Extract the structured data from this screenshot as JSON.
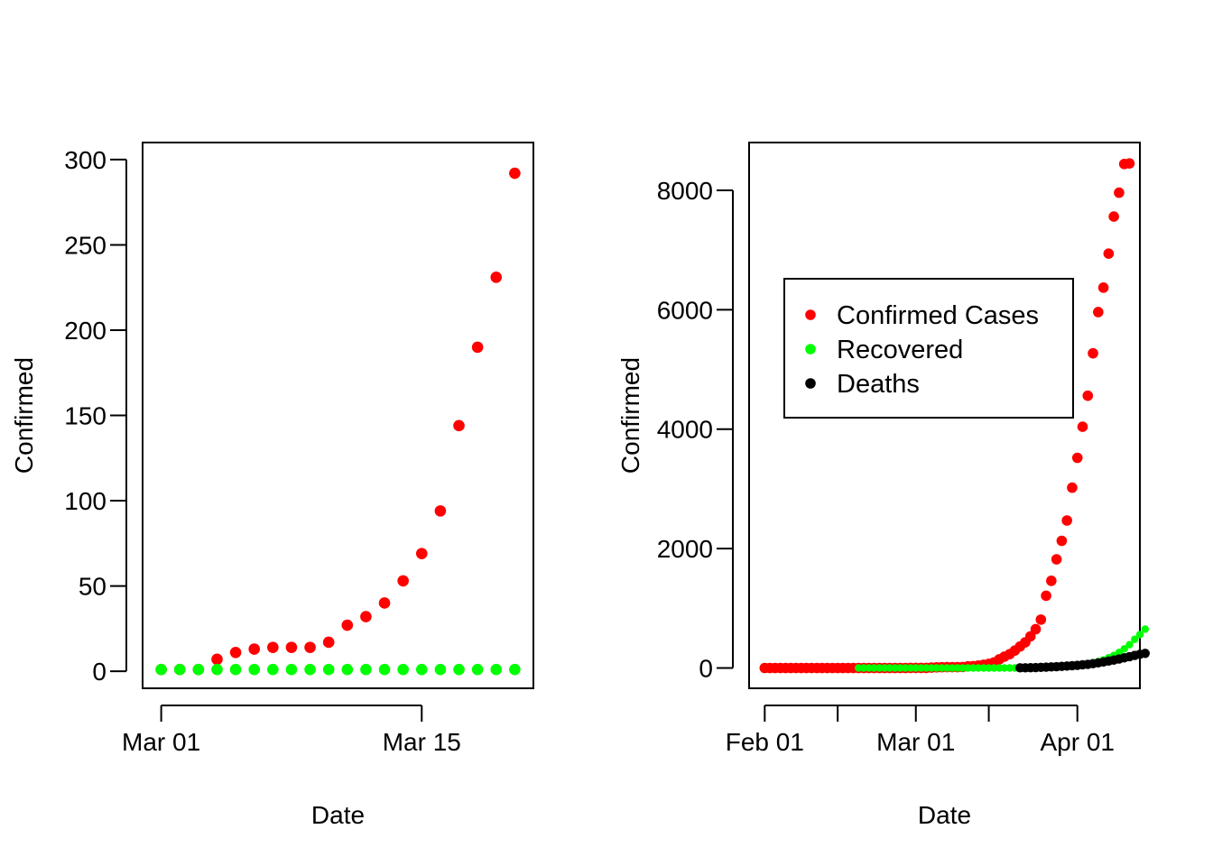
{
  "chart_data": [
    {
      "type": "scatter",
      "xlabel": "Date",
      "ylabel": "Confirmed",
      "x_ticks": [
        {
          "date": "2020-03-01",
          "label": "Mar 01"
        },
        {
          "date": "2020-03-15",
          "label": "Mar 15"
        }
      ],
      "y_ticks": [
        0,
        50,
        100,
        150,
        200,
        250,
        300
      ],
      "xlim": [
        "2020-02-29",
        "2020-03-21"
      ],
      "ylim": [
        -10,
        310
      ],
      "grid": false,
      "series": [
        {
          "color": "#ff0000",
          "x": [
            "2020-03-01",
            "2020-03-02",
            "2020-03-03",
            "2020-03-04",
            "2020-03-05",
            "2020-03-06",
            "2020-03-07",
            "2020-03-08",
            "2020-03-09",
            "2020-03-10",
            "2020-03-11",
            "2020-03-12",
            "2020-03-13",
            "2020-03-14",
            "2020-03-15",
            "2020-03-16",
            "2020-03-17",
            "2020-03-18",
            "2020-03-19",
            "2020-03-20"
          ],
          "values": [
            1,
            1,
            1,
            7,
            11,
            13,
            14,
            14,
            14,
            17,
            27,
            32,
            40,
            53,
            69,
            94,
            144,
            190,
            231,
            292
          ]
        },
        {
          "color": "#00ff00",
          "x": [
            "2020-03-01",
            "2020-03-02",
            "2020-03-03",
            "2020-03-04",
            "2020-03-05",
            "2020-03-06",
            "2020-03-07",
            "2020-03-08",
            "2020-03-09",
            "2020-03-10",
            "2020-03-11",
            "2020-03-12",
            "2020-03-13",
            "2020-03-14",
            "2020-03-15",
            "2020-03-16",
            "2020-03-17",
            "2020-03-18",
            "2020-03-19",
            "2020-03-20"
          ],
          "values": [
            1,
            1,
            1,
            1,
            1,
            1,
            1,
            1,
            1,
            1,
            1,
            1,
            1,
            1,
            1,
            1,
            1,
            1,
            1,
            1
          ]
        }
      ]
    },
    {
      "type": "scatter",
      "xlabel": "Date",
      "ylabel": "Confirmed",
      "x_ticks": [
        {
          "date": "2020-02-01",
          "label": "Feb 01",
          "labeled": true
        },
        {
          "date": "2020-02-15",
          "label": "",
          "labeled": false
        },
        {
          "date": "2020-03-01",
          "label": "Mar 01",
          "labeled": true
        },
        {
          "date": "2020-03-15",
          "label": "",
          "labeled": false
        },
        {
          "date": "2020-04-01",
          "label": "Apr 01",
          "labeled": true
        }
      ],
      "y_ticks": [
        0,
        2000,
        4000,
        6000,
        8000
      ],
      "xlim": [
        "2020-01-29",
        "2020-04-13"
      ],
      "ylim": [
        -340,
        8800
      ],
      "grid": false,
      "legend": {
        "position": "top-center",
        "entries": [
          {
            "label": "Confirmed Cases",
            "color": "#ff0000"
          },
          {
            "label": "Recovered",
            "color": "#00ff00"
          },
          {
            "label": "Deaths",
            "color": "#000000"
          }
        ]
      },
      "series": [
        {
          "name": "Confirmed Cases",
          "color": "#ff0000",
          "start_date": "2020-02-01",
          "values": [
            0,
            0,
            0,
            0,
            0,
            0,
            0,
            0,
            0,
            0,
            0,
            0,
            0,
            0,
            0,
            0,
            0,
            0,
            0,
            0,
            0,
            0,
            0,
            0,
            0,
            0,
            0,
            0,
            1,
            1,
            1,
            1,
            7,
            11,
            13,
            14,
            14,
            14,
            17,
            27,
            32,
            40,
            53,
            69,
            94,
            144,
            190,
            231,
            292,
            360,
            430,
            530,
            650,
            810,
            1210,
            1460,
            1820,
            2130,
            2470,
            3020,
            3520,
            4040,
            4560,
            5270,
            5960,
            6370,
            6940,
            7560,
            7960,
            8440,
            8450
          ]
        },
        {
          "name": "Recovered",
          "color": "#00ff00",
          "start_date": "2020-02-19",
          "values": [
            0,
            0,
            0,
            0,
            0,
            0,
            0,
            0,
            0,
            0,
            0,
            0,
            0,
            0,
            0,
            0,
            0,
            0,
            0,
            0,
            0,
            0,
            0,
            0,
            0,
            0,
            0,
            0,
            0,
            0,
            0,
            2,
            4,
            6,
            8,
            10,
            14,
            18,
            22,
            28,
            34,
            42,
            50,
            60,
            72,
            88,
            108,
            135,
            170,
            210,
            260,
            320,
            390,
            480,
            560,
            650
          ]
        },
        {
          "name": "Deaths",
          "color": "#000000",
          "start_date": "2020-03-21",
          "values": [
            2,
            3,
            5,
            7,
            10,
            14,
            18,
            22,
            27,
            32,
            38,
            45,
            53,
            62,
            73,
            86,
            100,
            116,
            132,
            150,
            170,
            190,
            210,
            230,
            245
          ]
        }
      ]
    }
  ]
}
